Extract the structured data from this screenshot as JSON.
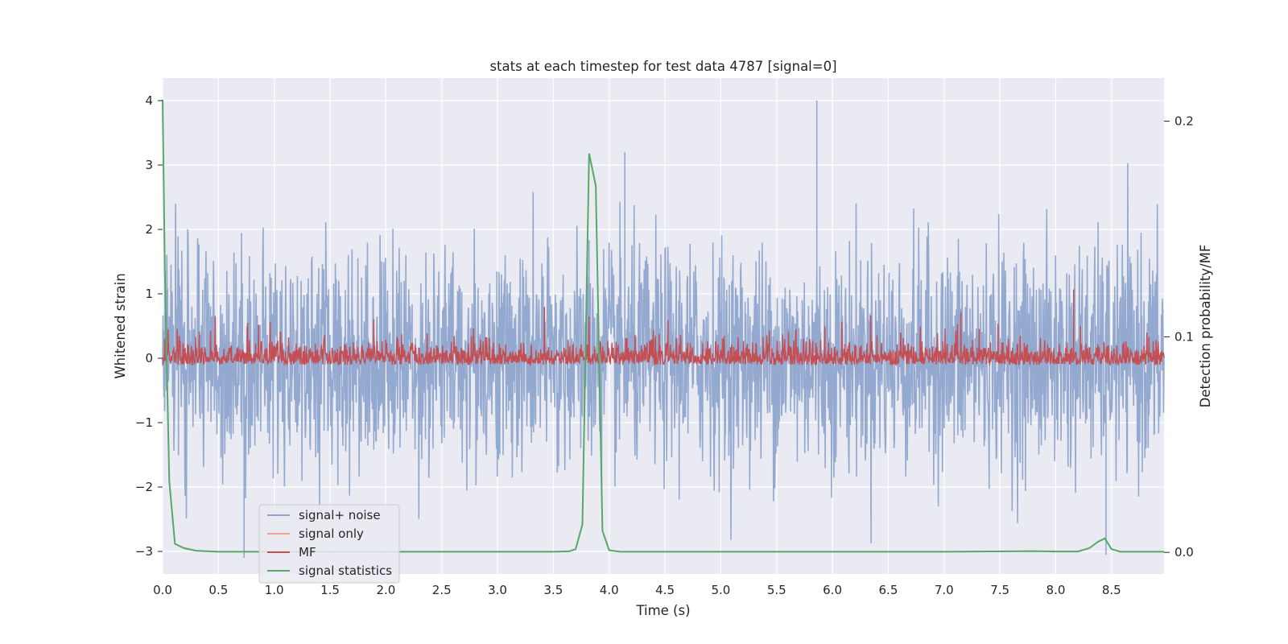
{
  "chart_data": {
    "type": "line",
    "title": "stats at each timestep for test data 4787 [signal=0]",
    "xlabel": "Time (s)",
    "ylabel": "Whitened strain",
    "ylabel_right": "Detection probability/MF",
    "xlim": [
      0.0,
      8.97
    ],
    "ylim": [
      -3.35,
      4.35
    ],
    "ylim_right": [
      -0.01,
      0.22
    ],
    "x_ticks": [
      "0.0",
      "0.5",
      "1.0",
      "1.5",
      "2.0",
      "2.5",
      "3.0",
      "3.5",
      "4.0",
      "4.5",
      "5.0",
      "5.5",
      "6.0",
      "6.5",
      "7.0",
      "7.5",
      "8.0",
      "8.5"
    ],
    "y_ticks": [
      "−3",
      "−2",
      "−1",
      "0",
      "1",
      "2",
      "3",
      "4"
    ],
    "y_right_ticks": [
      "0.0",
      "0.1",
      "0.2"
    ],
    "grid": true,
    "legend_position": "lower-left",
    "legend": [
      {
        "name": "signal+ noise",
        "color": "#8fa5cc"
      },
      {
        "name": "signal only",
        "color": "#e8a48c"
      },
      {
        "name": "MF",
        "color": "#c44e52"
      },
      {
        "name": "signal statistics",
        "color": "#55a868"
      }
    ],
    "series": [
      {
        "name": "signal+ noise",
        "axis": "left",
        "description_range": [
          -3.1,
          4.0
        ],
        "peaks": [
          {
            "x": 5.86,
            "y": 4.0
          },
          {
            "x": 4.14,
            "y": 3.2
          },
          {
            "x": 0.73,
            "y": -3.1
          },
          {
            "x": 8.45,
            "y": -3.05
          }
        ]
      },
      {
        "name": "signal only",
        "axis": "left",
        "x": [],
        "y": []
      },
      {
        "name": "MF",
        "axis": "right",
        "baseline": 0.09,
        "peaks": [
          {
            "x": 8.16,
            "y": 0.122
          }
        ]
      },
      {
        "name": "signal statistics",
        "axis": "right",
        "x": [
          0.0,
          0.02,
          0.06,
          0.11,
          0.19,
          0.3,
          0.5,
          1.0,
          2.0,
          3.0,
          3.5,
          3.64,
          3.7,
          3.76,
          3.82,
          3.88,
          3.94,
          4.0,
          4.1,
          5.0,
          6.0,
          7.0,
          7.8,
          8.0,
          8.2,
          8.3,
          8.38,
          8.44,
          8.5,
          8.58,
          8.7,
          8.97
        ],
        "y": [
          0.21,
          0.13,
          0.033,
          0.004,
          0.002,
          0.0008,
          0.0003,
          0.0003,
          0.0003,
          0.0003,
          0.0003,
          0.0005,
          0.0015,
          0.013,
          0.185,
          0.17,
          0.01,
          0.001,
          0.0003,
          0.0003,
          0.0003,
          0.0003,
          0.0006,
          0.0004,
          0.0004,
          0.002,
          0.005,
          0.0065,
          0.0015,
          0.0003,
          0.0003,
          0.0003
        ]
      }
    ]
  }
}
